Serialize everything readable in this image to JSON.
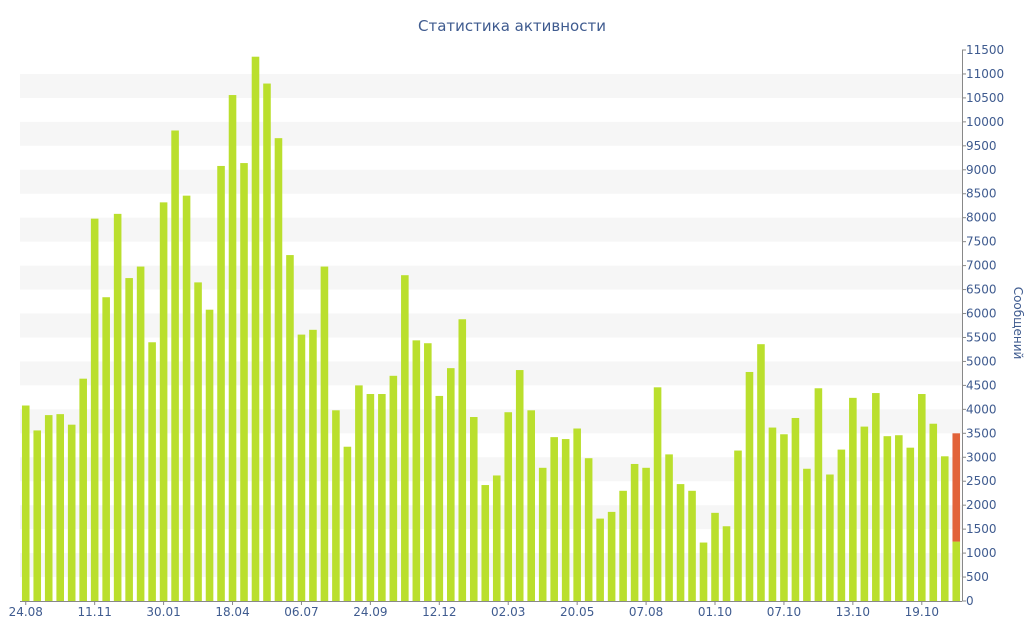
{
  "chart_data": {
    "type": "bar",
    "title": "Статистика активности",
    "ylabel": "Сообщений",
    "ylim": [
      0,
      11500
    ],
    "ytick_step": 500,
    "x_tick_labels": [
      "24.08",
      "11.11",
      "30.01",
      "18.04",
      "06.07",
      "24.09",
      "12.12",
      "02.03",
      "20.05",
      "07.08",
      "01.10",
      "07.10",
      "13.10",
      "19.10"
    ],
    "x_tick_bar_index": [
      0,
      6,
      12,
      18,
      24,
      30,
      36,
      42,
      48,
      54,
      60,
      66,
      72,
      78
    ],
    "values": [
      4080,
      3560,
      3880,
      3900,
      3680,
      4640,
      7980,
      6340,
      8080,
      6740,
      6980,
      5400,
      8320,
      9820,
      8460,
      6650,
      6080,
      9080,
      10560,
      9140,
      11360,
      10800,
      9660,
      7220,
      5560,
      5660,
      6980,
      3980,
      3220,
      4500,
      4320,
      4320,
      4700,
      6800,
      5440,
      5380,
      4280,
      4860,
      5880,
      3840,
      2420,
      2620,
      3940,
      4820,
      3980,
      2780,
      3420,
      3380,
      3600,
      2980,
      1720,
      1860,
      2300,
      2860,
      2780,
      4460,
      3060,
      2440,
      2300,
      1220,
      1840,
      1560,
      3140,
      4780,
      5360,
      3620,
      3480,
      3820,
      2760,
      4440,
      2640,
      3160,
      4240,
      3640,
      4340,
      3440,
      3460,
      3200,
      4320,
      3700,
      3020,
      1240
    ],
    "current_extra": 2260,
    "colors": {
      "bar": "#badf2d",
      "current": "#e2633a",
      "band": "#f6f6f6",
      "text": "#3f5b8f",
      "axis": "#888888"
    },
    "grid": "alternating-bands",
    "y_axis_position": "right"
  }
}
